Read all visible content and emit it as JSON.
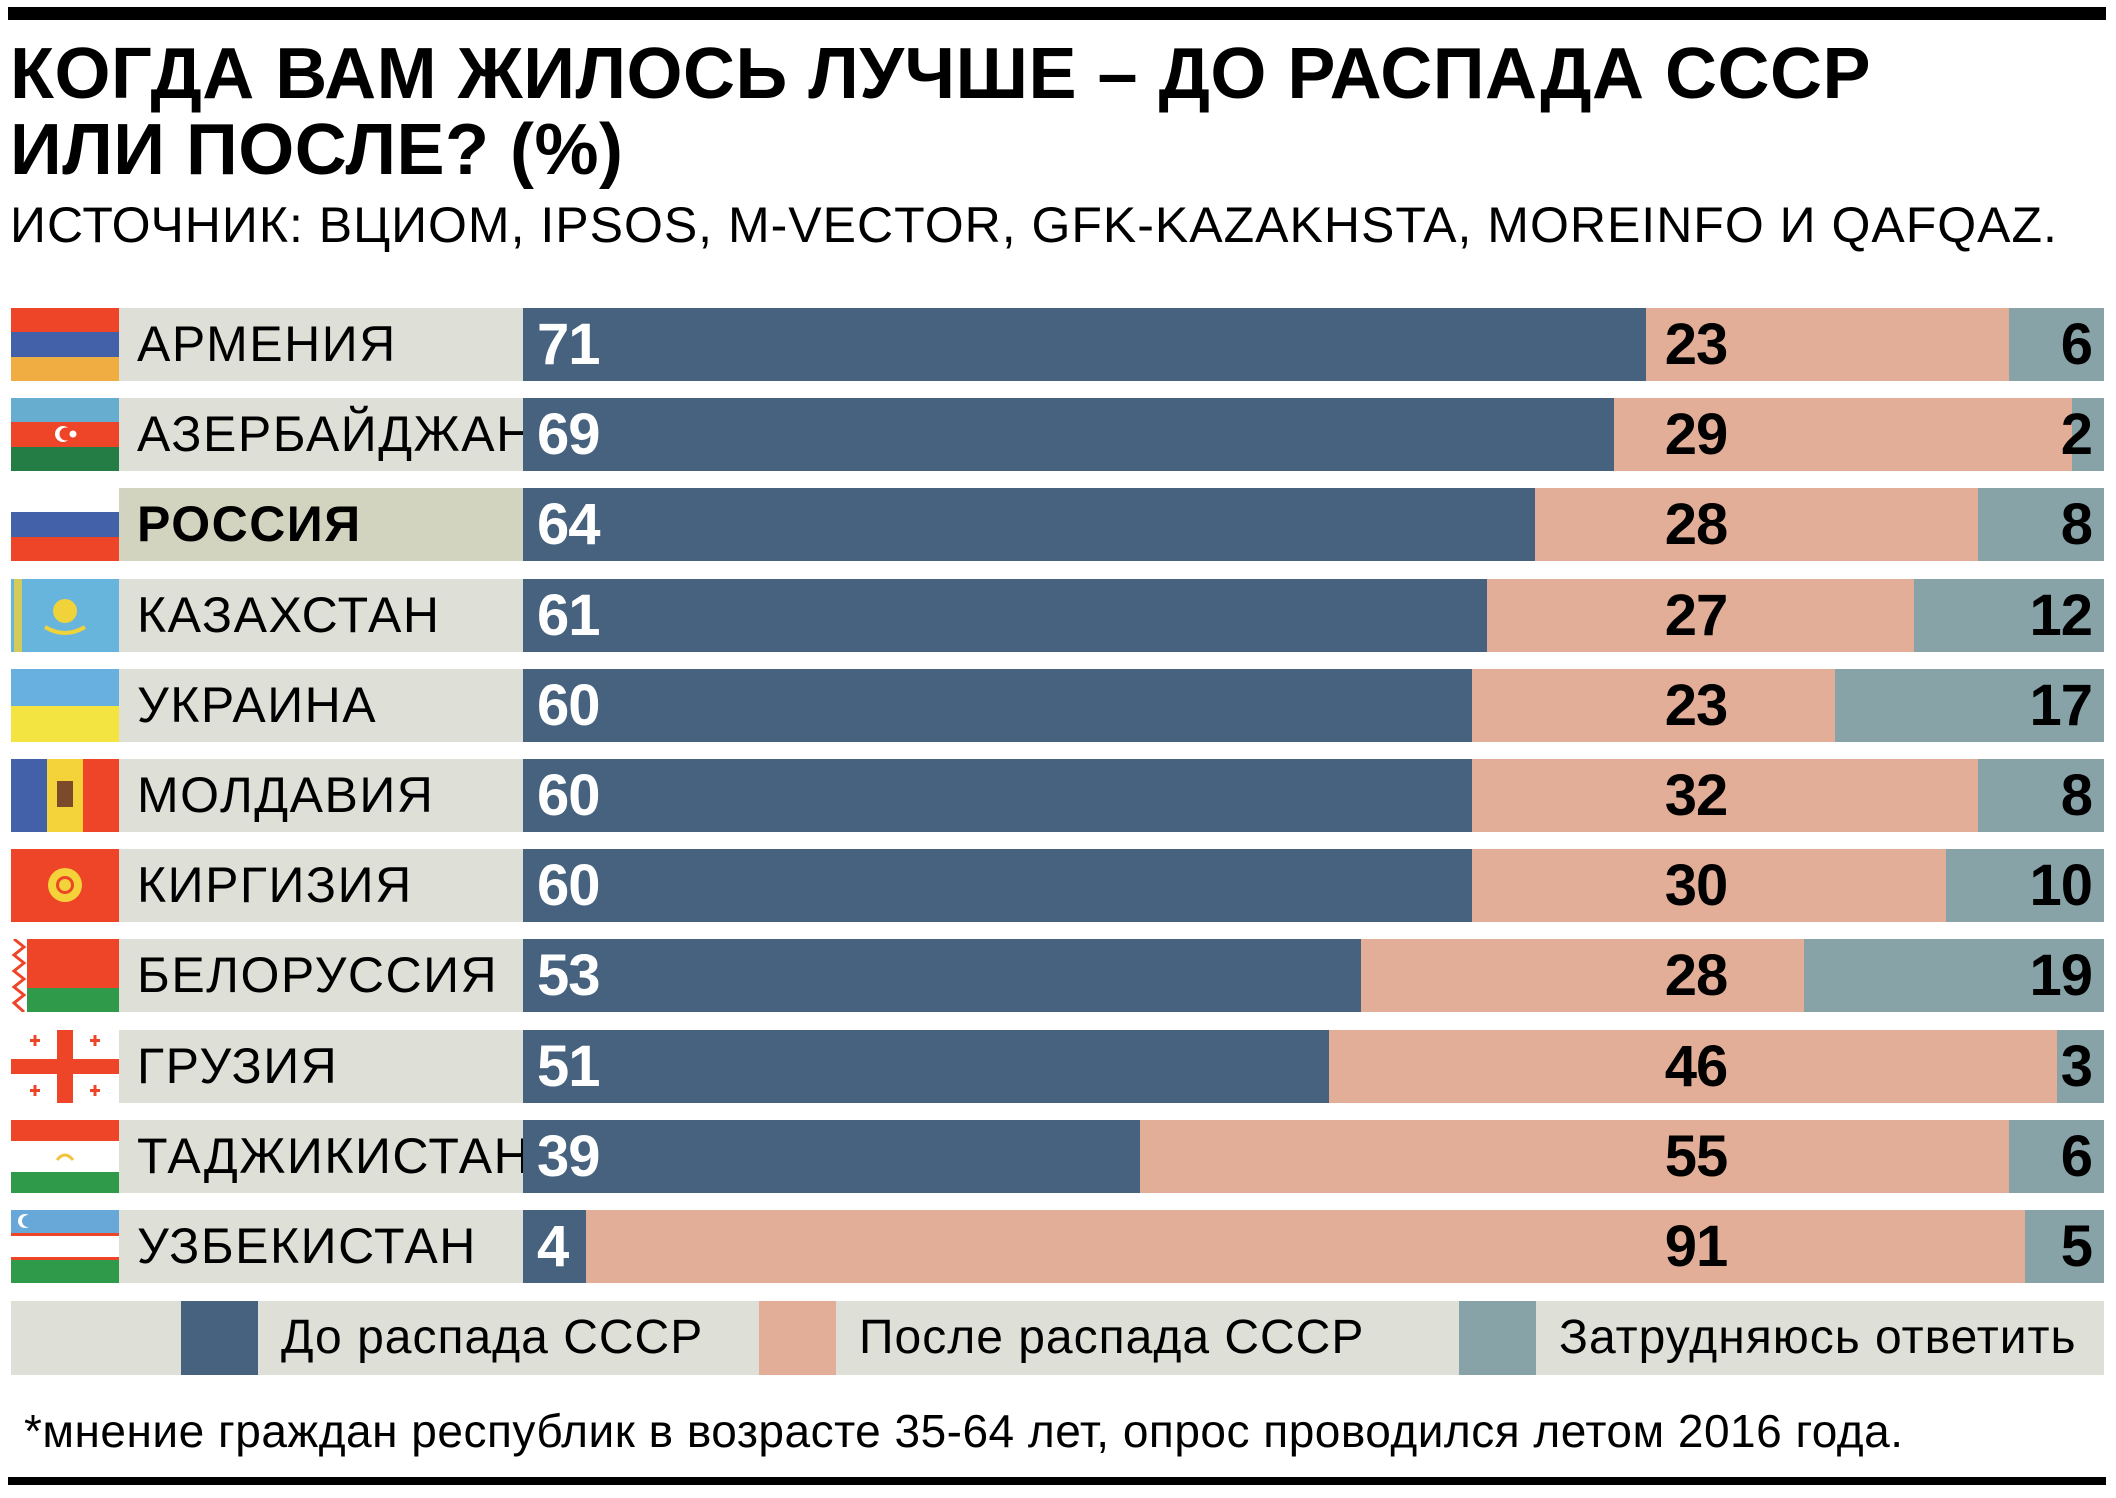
{
  "title_line1": "КОГДА ВАМ ЖИЛОСЬ ЛУЧШЕ – ДО РАСПАДА СССР",
  "title_line2": "ИЛИ ПОСЛЕ? (%)",
  "subtitle": "ИСТОЧНИК: ВЦИОМ, IPSOS, M-VECTOR, GFK-KAZAKHSTA, MOREINFO И QAFQAZ.",
  "footnote": "*мнение граждан республик в возрасте 35-64 лет, опрос проводился летом 2016 года.",
  "colors": {
    "before": "#46627f",
    "after": "#e3ae97",
    "unsure": "#87a3a8"
  },
  "chart_data": {
    "type": "bar",
    "orientation": "horizontal-stacked-100",
    "title": "КОГДА ВАМ ЖИЛОСЬ ЛУЧШЕ – ДО РАСПАДА СССР ИЛИ ПОСЛЕ? (%)",
    "categories": [
      "АРМЕНИЯ",
      "АЗЕРБАЙДЖАН",
      "РОССИЯ",
      "КАЗАХСТАН",
      "УКРАИНА",
      "МОЛДАВИЯ",
      "КИРГИЗИЯ",
      "БЕЛОРУССИЯ",
      "ГРУЗИЯ",
      "ТАДЖИКИСТАН",
      "УЗБЕКИСТАН"
    ],
    "flags": [
      "armenia",
      "azerbaijan",
      "russia",
      "kazakhstan",
      "ukraine",
      "moldova",
      "kyrgyzstan",
      "belarus",
      "georgia",
      "tajikistan",
      "uzbekistan"
    ],
    "highlight": "РОССИЯ",
    "series": [
      {
        "name": "До распада СССР",
        "values": [
          71,
          69,
          64,
          61,
          60,
          60,
          60,
          53,
          51,
          39,
          4
        ]
      },
      {
        "name": "После распада СССР",
        "values": [
          23,
          29,
          28,
          27,
          23,
          32,
          30,
          28,
          46,
          55,
          91
        ]
      },
      {
        "name": "Затрудняюсь ответить",
        "values": [
          6,
          2,
          8,
          12,
          17,
          8,
          10,
          19,
          3,
          6,
          5
        ]
      }
    ],
    "xlim": [
      0,
      100
    ],
    "legend": "bottom"
  }
}
